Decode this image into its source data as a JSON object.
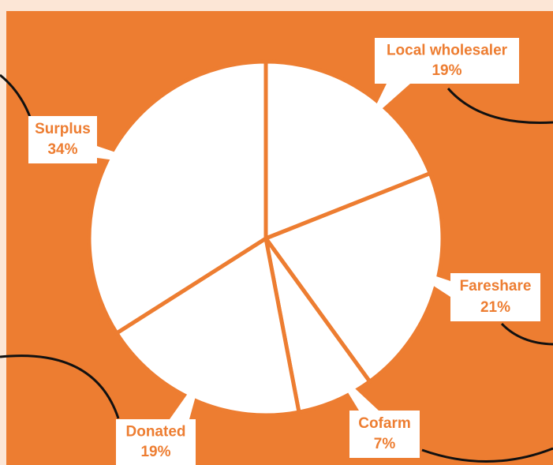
{
  "chart_data": {
    "type": "pie",
    "categories": [
      "Local wholesaler",
      "Fareshare",
      "Cofarm",
      "Donated",
      "Surplus"
    ],
    "values": [
      19,
      21,
      7,
      19,
      34
    ],
    "value_labels": [
      "19%",
      "21%",
      "7%",
      "19%",
      "34%"
    ],
    "color": "#ffffff",
    "background": "#ed7d31",
    "label_color": "#ed7d31"
  }
}
